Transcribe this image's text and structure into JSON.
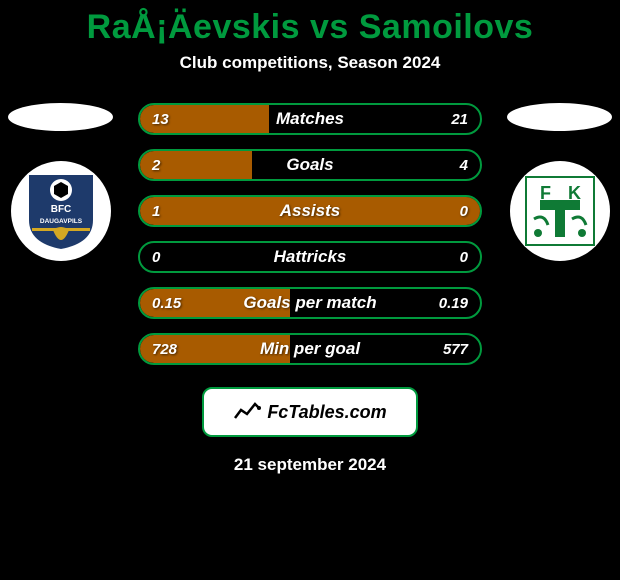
{
  "colors": {
    "background": "#000000",
    "title": "#009a3e",
    "subtitle": "#ffffff",
    "bar_border": "#009a3e",
    "bar_fill": "#a85b00",
    "bar_track": "#000000",
    "bar_text": "#ffffff",
    "footer_border": "#009a3e",
    "footer_bg": "#ffffff",
    "footer_text": "#000000",
    "date_text": "#ffffff",
    "ellipse": "#ffffff",
    "logo_bg": "#ffffff",
    "bfc_navy": "#1e3a6b",
    "bfc_gold": "#d4a823",
    "fkt_green": "#0f7a35"
  },
  "title": {
    "text": "RaÅ¡Äevskis vs Samoilovs",
    "fontsize": 34
  },
  "subtitle": {
    "text": "Club competitions, Season 2024",
    "fontsize": 17
  },
  "left_club": {
    "name": "BFC Daugavpils",
    "label_top": "BFC",
    "label_bottom": "DAUGAVPILS"
  },
  "right_club": {
    "name": "FK Tukums",
    "label": "FK T"
  },
  "bars": {
    "label_fontsize": 17,
    "value_fontsize": 15,
    "rows": [
      {
        "label": "Matches",
        "left": "13",
        "right": "21",
        "fill_pct": 38
      },
      {
        "label": "Goals",
        "left": "2",
        "right": "4",
        "fill_pct": 33
      },
      {
        "label": "Assists",
        "left": "1",
        "right": "0",
        "fill_pct": 100
      },
      {
        "label": "Hattricks",
        "left": "0",
        "right": "0",
        "fill_pct": 0
      },
      {
        "label": "Goals per match",
        "left": "0.15",
        "right": "0.19",
        "fill_pct": 44
      },
      {
        "label": "Min per goal",
        "left": "728",
        "right": "577",
        "fill_pct": 44
      }
    ]
  },
  "footer": {
    "text": "FcTables.com",
    "fontsize": 18
  },
  "date": {
    "text": "21 september 2024",
    "fontsize": 17
  }
}
